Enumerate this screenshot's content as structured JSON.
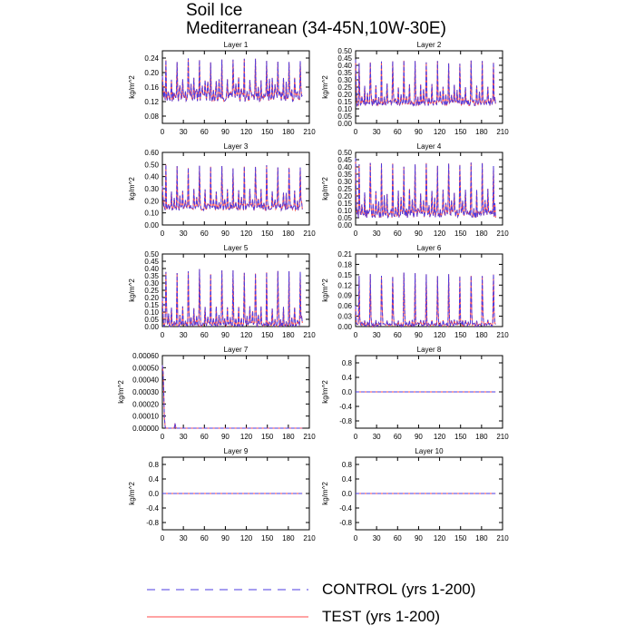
{
  "title": {
    "line1": "Soil Ice",
    "line2": "Mediterranean (34-45N,10W-30E)"
  },
  "legend": {
    "control_label": "CONTROL (yrs 1-200)",
    "test_label": "TEST (yrs 1-200)",
    "control_color": "#4b3be0",
    "test_color": "#ff4a4a"
  },
  "chart_data": [
    {
      "type": "line",
      "title": "Layer 1",
      "ylabel": "kg/m^2",
      "xlim": [
        0,
        210
      ],
      "ylim": [
        0.06,
        0.26
      ],
      "xticks": [
        "0",
        "30",
        "60",
        "90",
        "120",
        "150",
        "180",
        "210"
      ],
      "yticks": [
        "0.08",
        "0.12",
        "0.16",
        "0.20",
        "0.24"
      ],
      "pattern": "spiky",
      "period": 16,
      "phase": 5,
      "base": 0.12,
      "amp": 0.12,
      "secondary": 0.07,
      "noise": 0.03,
      "tail": [
        0.19,
        0.1
      ]
    },
    {
      "type": "line",
      "title": "Layer 2",
      "ylabel": "kg/m^2",
      "xlim": [
        0,
        210
      ],
      "ylim": [
        0,
        0.5
      ],
      "xticks": [
        "0",
        "30",
        "60",
        "90",
        "120",
        "150",
        "180",
        "210"
      ],
      "yticks": [
        "0.00",
        "0.05",
        "0.10",
        "0.15",
        "0.20",
        "0.25",
        "0.30",
        "0.35",
        "0.40",
        "0.45",
        "0.50"
      ],
      "pattern": "spiky",
      "period": 16,
      "phase": 5,
      "base": 0.12,
      "amp": 0.32,
      "secondary": 0.16,
      "noise": 0.04,
      "tail": [
        0.44,
        0.1
      ]
    },
    {
      "type": "line",
      "title": "Layer 3",
      "ylabel": "kg/m^2",
      "xlim": [
        0,
        210
      ],
      "ylim": [
        0,
        0.6
      ],
      "xticks": [
        "0",
        "30",
        "60",
        "90",
        "120",
        "150",
        "180",
        "210"
      ],
      "yticks": [
        "0.00",
        "0.10",
        "0.20",
        "0.30",
        "0.40",
        "0.50",
        "0.60"
      ],
      "pattern": "spiky",
      "period": 16,
      "phase": 5,
      "base": 0.12,
      "amp": 0.38,
      "secondary": 0.18,
      "noise": 0.05,
      "tail": [
        0.32,
        0.1
      ]
    },
    {
      "type": "line",
      "title": "Layer 4",
      "ylabel": "kg/m^2",
      "xlim": [
        0,
        210
      ],
      "ylim": [
        0,
        0.5
      ],
      "xticks": [
        "0",
        "30",
        "60",
        "90",
        "120",
        "150",
        "180",
        "210"
      ],
      "yticks": [
        "0.00",
        "0.05",
        "0.10",
        "0.15",
        "0.20",
        "0.25",
        "0.30",
        "0.35",
        "0.40",
        "0.45",
        "0.50"
      ],
      "pattern": "spiky",
      "period": 16,
      "phase": 5,
      "base": 0.05,
      "amp": 0.38,
      "secondary": 0.2,
      "noise": 0.06,
      "tail": [
        0.46,
        0.05
      ]
    },
    {
      "type": "line",
      "title": "Layer 5",
      "ylabel": "kg/m^2",
      "xlim": [
        0,
        210
      ],
      "ylim": [
        0,
        0.5
      ],
      "xticks": [
        "0",
        "30",
        "60",
        "90",
        "120",
        "150",
        "180",
        "210"
      ],
      "yticks": [
        "0.00",
        "0.05",
        "0.10",
        "0.15",
        "0.20",
        "0.25",
        "0.30",
        "0.35",
        "0.40",
        "0.45",
        "0.50"
      ],
      "pattern": "spiky",
      "period": 16,
      "phase": 5,
      "base": 0.0,
      "amp": 0.4,
      "secondary": 0.15,
      "noise": 0.03,
      "tail": [
        0.2,
        0.0
      ]
    },
    {
      "type": "line",
      "title": "Layer 6",
      "ylabel": "kg/m^2",
      "xlim": [
        0,
        210
      ],
      "ylim": [
        0,
        0.21
      ],
      "xticks": [
        "0",
        "30",
        "60",
        "90",
        "120",
        "150",
        "180",
        "210"
      ],
      "yticks": [
        "0.00",
        "0.03",
        "0.06",
        "0.09",
        "0.12",
        "0.15",
        "0.18",
        "0.21"
      ],
      "pattern": "spiky",
      "period": 16,
      "phase": 5,
      "base": 0.0,
      "amp": 0.16,
      "secondary": 0.02,
      "noise": 0.01,
      "tail": [
        0.06,
        0.0
      ]
    },
    {
      "type": "line",
      "title": "Layer 7",
      "ylabel": "kg/m^2",
      "xlim": [
        0,
        210
      ],
      "ylim": [
        0,
        0.0006
      ],
      "xticks": [
        "0",
        "30",
        "60",
        "90",
        "120",
        "150",
        "180",
        "210"
      ],
      "yticks": [
        "0.00000",
        "0.00010",
        "0.00020",
        "0.00030",
        "0.00040",
        "0.00050",
        "0.00060"
      ],
      "pattern": "decay",
      "points": [
        [
          0,
          0.00052
        ],
        [
          1,
          0.00046
        ],
        [
          2,
          0.0003
        ],
        [
          3,
          8e-05
        ],
        [
          4,
          1e-05
        ],
        [
          5,
          0
        ],
        [
          17,
          0
        ],
        [
          18,
          4e-05
        ],
        [
          19,
          1e-05
        ],
        [
          20,
          0
        ],
        [
          200,
          0
        ]
      ]
    },
    {
      "type": "line",
      "title": "Layer 8",
      "ylabel": "kg/m^2",
      "xlim": [
        0,
        210
      ],
      "ylim": [
        -1,
        1
      ],
      "xticks": [
        "0",
        "30",
        "60",
        "90",
        "120",
        "150",
        "180",
        "210"
      ],
      "yticks": [
        "-0.8",
        "-0.4",
        "0.0",
        "0.4",
        "0.8"
      ],
      "pattern": "flat",
      "value": 0
    },
    {
      "type": "line",
      "title": "Layer 9",
      "ylabel": "kg/m^2",
      "xlim": [
        0,
        210
      ],
      "ylim": [
        -1,
        1
      ],
      "xticks": [
        "0",
        "30",
        "60",
        "90",
        "120",
        "150",
        "180",
        "210"
      ],
      "yticks": [
        "-0.8",
        "-0.4",
        "0.0",
        "0.4",
        "0.8"
      ],
      "pattern": "flat",
      "value": 0
    },
    {
      "type": "line",
      "title": "Layer 10",
      "ylabel": "kg/m^2",
      "xlim": [
        0,
        210
      ],
      "ylim": [
        -1,
        1
      ],
      "xticks": [
        "0",
        "30",
        "60",
        "90",
        "120",
        "150",
        "180",
        "210"
      ],
      "yticks": [
        "-0.8",
        "-0.4",
        "0.0",
        "0.4",
        "0.8"
      ],
      "pattern": "flat",
      "value": 0
    }
  ]
}
